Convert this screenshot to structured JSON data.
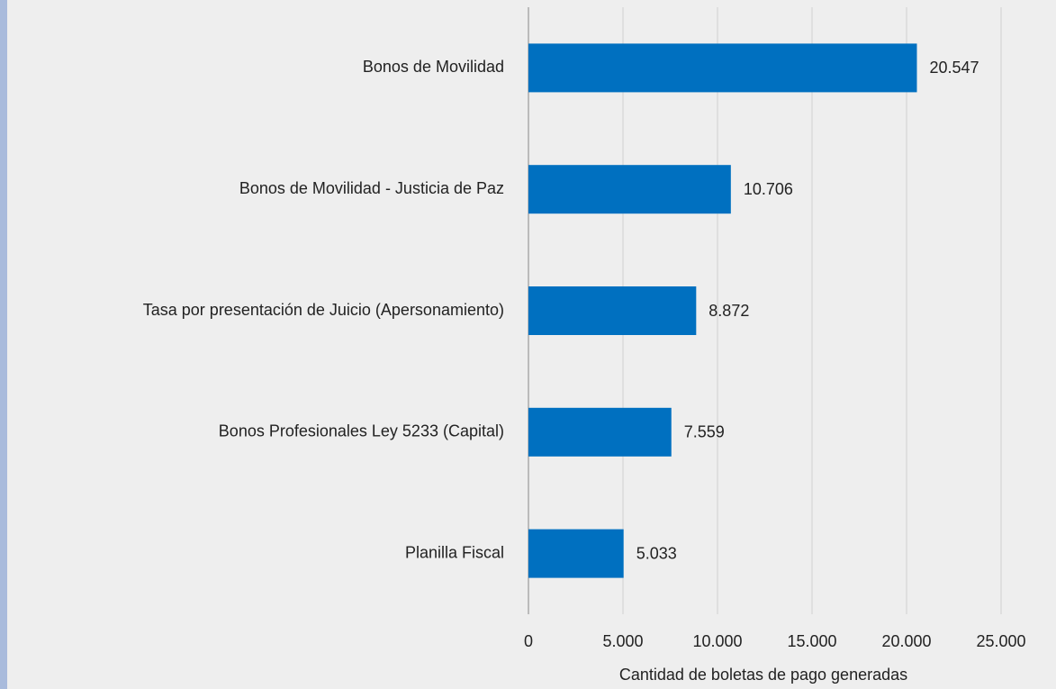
{
  "chart_data": {
    "type": "bar",
    "orientation": "horizontal",
    "categories": [
      "Bonos de Movilidad",
      "Bonos de Movilidad - Justicia de Paz",
      "Tasa por presentación de Juicio (Apersonamiento)",
      "Bonos Profesionales Ley 5233 (Capital)",
      "Planilla Fiscal"
    ],
    "values": [
      20547,
      10706,
      8872,
      7559,
      5033
    ],
    "value_labels": [
      "20.547",
      "10.706",
      "8.872",
      "7.559",
      "5.033"
    ],
    "color": "#0070c0",
    "xlim": [
      0,
      25000
    ],
    "xticks": [
      0,
      {
        "value": 5000,
        "label": "5.000"
      },
      {
        "value": 10000,
        "label": "10.000"
      },
      {
        "value": 15000,
        "label": "15.000"
      },
      {
        "value": 20000,
        "label": "20.000"
      },
      {
        "value": 25000,
        "label": "25.000"
      }
    ],
    "xlabel": "Cantidad de boletas de pago generadas",
    "grid": true
  }
}
